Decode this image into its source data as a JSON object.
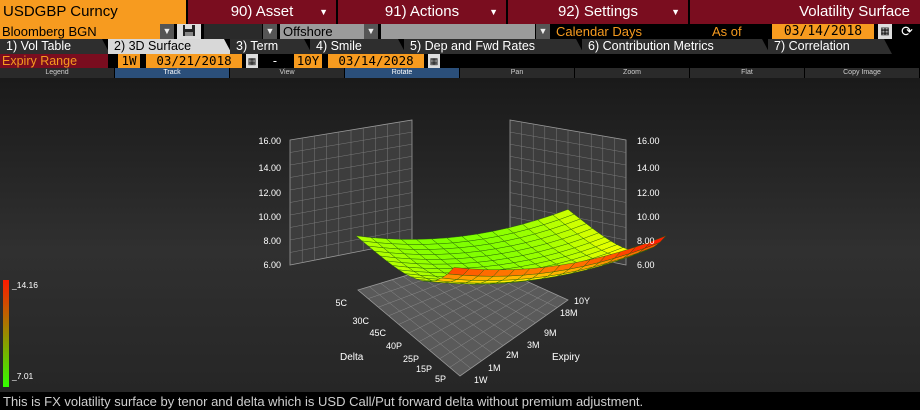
{
  "header": {
    "security": "USDGBP Curncy",
    "asset_menu": "90) Asset",
    "actions_menu": "91) Actions",
    "settings_menu": "92) Settings",
    "function_title": "Volatility Surface"
  },
  "options": {
    "source": "Bloomberg BGN",
    "market": "Offshore",
    "day_count": "Calendar Days",
    "as_of_label": "As of",
    "as_of_date": "03/14/2018"
  },
  "tabs": [
    {
      "label": "1) Vol Table"
    },
    {
      "label": "2) 3D Surface"
    },
    {
      "label": "3) Term"
    },
    {
      "label": "4) Smile"
    },
    {
      "label": "5) Dep and Fwd Rates"
    },
    {
      "label": "6) Contribution Metrics"
    },
    {
      "label": "7) Correlation"
    }
  ],
  "expiry_range": {
    "label": "Expiry Range",
    "from_tenor": "1W",
    "from_date": "03/21/2018",
    "separator": "-",
    "to_tenor": "10Y",
    "to_date": "03/14/2028"
  },
  "toolbar": {
    "legend": "Legend",
    "track": "Track",
    "view": "View",
    "rotate": "Rotate",
    "pan": "Pan",
    "zoom": "Zoom",
    "flat": "Flat",
    "copy_image": "Copy Image"
  },
  "chart_data": {
    "type": "surface",
    "z_ticks": [
      "16.00",
      "14.00",
      "12.00",
      "10.00",
      "8.00",
      "6.00"
    ],
    "zlim": [
      6,
      16
    ],
    "delta_label": "Delta",
    "delta_ticks": [
      "5C",
      "30C",
      "45C",
      "40P",
      "25P",
      "15P",
      "5P"
    ],
    "expiry_label": "Expiry",
    "expiry_ticks": [
      "10Y",
      "18M",
      "9M",
      "3M",
      "2M",
      "1M",
      "1W"
    ],
    "color_scale": {
      "max": "_14.16",
      "min": "_7.01",
      "max_color": "#ff1a00",
      "min_color": "#33ff00"
    },
    "grid": true
  },
  "footer_text": "This is FX volatility surface by tenor and delta which is USD Call/Put forward delta without premium adjustment."
}
